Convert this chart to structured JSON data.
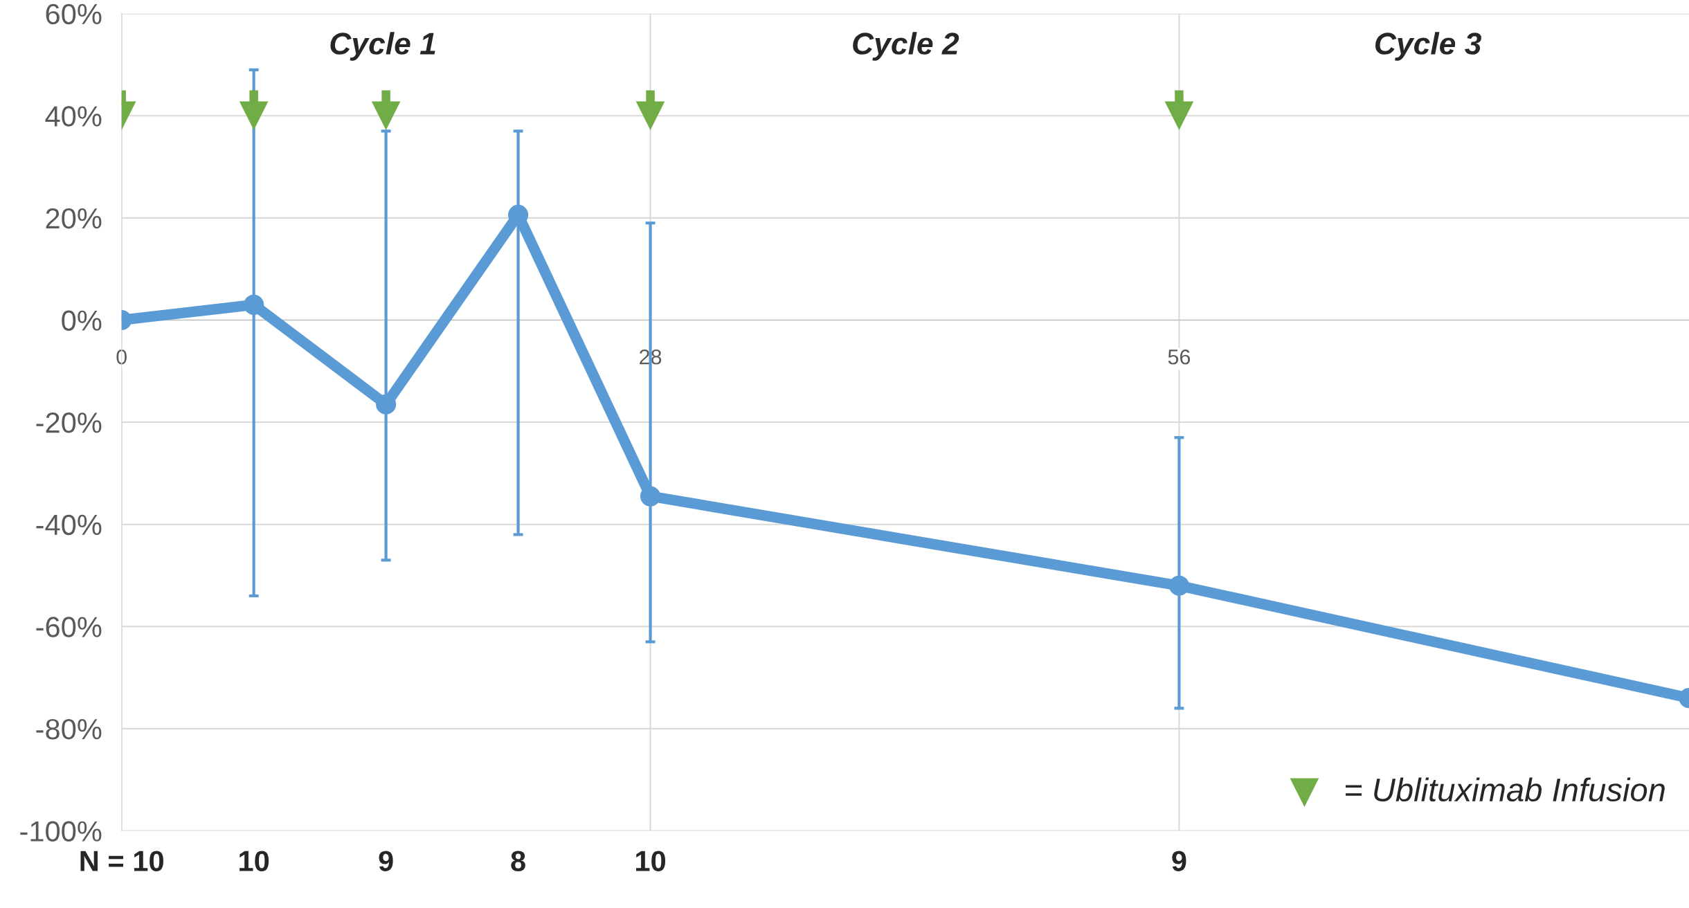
{
  "chart_data": {
    "type": "line",
    "x": [
      0,
      7,
      14,
      21,
      28,
      56,
      83
    ],
    "xlim": [
      0,
      83
    ],
    "xticks": [
      0,
      28,
      56
    ],
    "ylim": [
      -100,
      60
    ],
    "yticks": [
      {
        "value": -100,
        "label": "-100%"
      },
      {
        "value": -80,
        "label": "-80%"
      },
      {
        "value": -60,
        "label": "-60%"
      },
      {
        "value": -40,
        "label": "-40%"
      },
      {
        "value": -20,
        "label": "-20%"
      },
      {
        "value": 0,
        "label": "0%"
      },
      {
        "value": 20,
        "label": "20%"
      },
      {
        "value": 40,
        "label": "40%"
      },
      {
        "value": 60,
        "label": "60%"
      }
    ],
    "grid": true,
    "legend": "bottom right",
    "marker": "circle",
    "series": [
      {
        "color": "#5b9bd5",
        "values": [
          0,
          3,
          -16.5,
          20.6,
          -34.5,
          -52,
          -74
        ],
        "errors": [
          null,
          [
            -54,
            49
          ],
          [
            -47,
            37
          ],
          [
            -42,
            37
          ],
          [
            -63,
            19
          ],
          [
            -76,
            -23
          ],
          null
        ]
      },
      {
        "type": "scatter",
        "name": "= Ublituximab Infusion",
        "color": "#70ad47",
        "marker": "triangle",
        "x": [
          0,
          7,
          14,
          28,
          56
        ],
        "values": [
          40,
          40,
          40,
          40,
          40
        ]
      }
    ],
    "annotations": [
      "Cycle 1",
      "Cycle 2",
      "Cycle 3",
      "N = 10",
      "10",
      "9",
      "8",
      "10",
      "9"
    ]
  }
}
